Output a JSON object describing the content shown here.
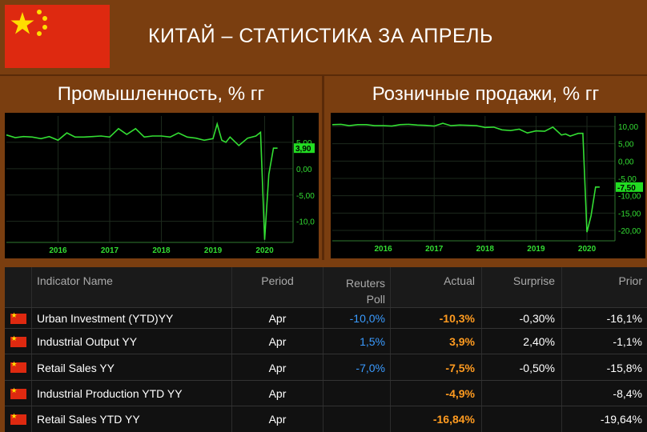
{
  "page": {
    "title": "КИТАЙ – СТАТИСТИКА ЗА АПРЕЛЬ",
    "colors": {
      "background": "#7a3e10",
      "line": "#33dd33",
      "flag_red": "#de2910",
      "flag_yellow": "#ffde00",
      "poll_blue": "#3a9bff",
      "actual_orange": "#ff9b20"
    }
  },
  "chart_data": [
    {
      "type": "line",
      "title": "Промышленность, % гг",
      "xlabel": "",
      "ylabel": "",
      "x_ticks": [
        "2016",
        "2017",
        "2018",
        "2019",
        "2020"
      ],
      "y_ticks": [
        "5,00",
        "0,00",
        "-5,00",
        "-10,0"
      ],
      "current_label": "3,90",
      "ylim": [
        -14,
        10
      ],
      "grid": true,
      "series": [
        {
          "x": [
            2015.0,
            2015.17,
            2015.33,
            2015.5,
            2015.67,
            2015.83,
            2016.0,
            2016.17,
            2016.33,
            2016.5,
            2016.67,
            2016.83,
            2017.0,
            2017.17,
            2017.33,
            2017.5,
            2017.67,
            2017.83,
            2018.0,
            2018.17,
            2018.33,
            2018.5,
            2018.67,
            2018.83,
            2019.0,
            2019.08,
            2019.17,
            2019.25,
            2019.33,
            2019.5,
            2019.67,
            2019.83,
            2019.92,
            2020.0,
            2020.08,
            2020.17,
            2020.25
          ],
          "y": [
            6.4,
            5.9,
            6.1,
            6.0,
            5.7,
            6.1,
            5.4,
            6.8,
            6.0,
            6.0,
            6.1,
            6.2,
            6.0,
            7.6,
            6.5,
            7.6,
            6.0,
            6.2,
            6.2,
            6.0,
            6.8,
            6.0,
            5.8,
            5.4,
            5.7,
            8.5,
            5.4,
            5.0,
            6.0,
            4.4,
            5.8,
            6.2,
            6.9,
            -13.5,
            -1.1,
            3.9,
            3.9
          ]
        }
      ]
    },
    {
      "type": "line",
      "title": "Розничные продажи, % гг",
      "xlabel": "",
      "ylabel": "",
      "x_ticks": [
        "2016",
        "2017",
        "2018",
        "2019",
        "2020"
      ],
      "y_ticks": [
        "10,00",
        "5,00",
        "0,00",
        "-5,00",
        "-10,00",
        "-15,00",
        "-20,00"
      ],
      "current_label": "-7,50",
      "ylim": [
        -23,
        13
      ],
      "grid": true,
      "series": [
        {
          "x": [
            2015.0,
            2015.17,
            2015.33,
            2015.5,
            2015.67,
            2015.83,
            2016.0,
            2016.17,
            2016.33,
            2016.5,
            2016.67,
            2016.83,
            2017.0,
            2017.17,
            2017.33,
            2017.5,
            2017.67,
            2017.83,
            2018.0,
            2018.17,
            2018.33,
            2018.5,
            2018.67,
            2018.83,
            2019.0,
            2019.17,
            2019.33,
            2019.5,
            2019.58,
            2019.67,
            2019.83,
            2019.92,
            2020.0,
            2020.08,
            2020.17,
            2020.25
          ],
          "y": [
            10.5,
            10.6,
            10.2,
            10.5,
            10.5,
            10.2,
            10.2,
            10.1,
            10.5,
            10.6,
            10.4,
            10.3,
            10.1,
            10.9,
            10.2,
            10.4,
            10.3,
            10.2,
            9.7,
            9.8,
            9.0,
            8.8,
            9.2,
            8.1,
            8.7,
            8.6,
            9.8,
            7.5,
            7.8,
            7.2,
            8.0,
            8.0,
            -20.5,
            -15.8,
            -7.5,
            -7.5
          ]
        }
      ]
    }
  ],
  "table": {
    "headers": {
      "name": "Indicator Name",
      "period": "Period",
      "poll_line1": "Reuters",
      "poll_line2": "Poll",
      "actual": "Actual",
      "surprise": "Surprise",
      "prior": "Prior"
    },
    "rows": [
      {
        "name": "Urban Investment (YTD)YY",
        "period": "Apr",
        "poll": "-10,0%",
        "actual": "-10,3%",
        "surprise": "-0,30%",
        "prior": "-16,1%"
      },
      {
        "name": "Industrial Output YY",
        "period": "Apr",
        "poll": "1,5%",
        "actual": "3,9%",
        "surprise": "2,40%",
        "prior": "-1,1%"
      },
      {
        "name": "Retail Sales YY",
        "period": "Apr",
        "poll": "-7,0%",
        "actual": "-7,5%",
        "surprise": "-0,50%",
        "prior": "-15,8%"
      },
      {
        "name": "Industrial Production YTD YY",
        "period": "Apr",
        "poll": "",
        "actual": "-4,9%",
        "surprise": "",
        "prior": "-8,4%"
      },
      {
        "name": "Retail Sales YTD YY",
        "period": "Apr",
        "poll": "",
        "actual": "-16,84%",
        "surprise": "",
        "prior": "-19,64%"
      }
    ]
  }
}
